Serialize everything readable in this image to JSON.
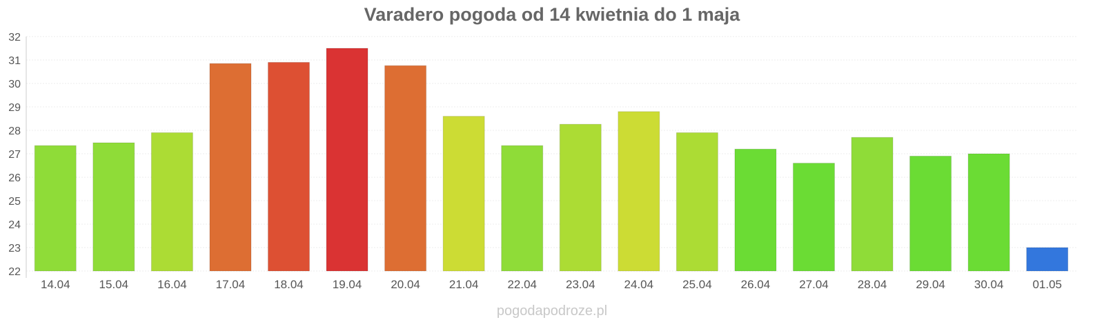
{
  "chart_data": {
    "type": "bar",
    "title": "Varadero pogoda od 14 kwietnia do 1 maja",
    "xlabel": "",
    "ylabel": "",
    "ylim": [
      22,
      32
    ],
    "yticks": [
      "22",
      "23",
      "24",
      "25",
      "26",
      "27",
      "28",
      "29",
      "30",
      "31",
      "32"
    ],
    "grid": true,
    "categories": [
      "14.04",
      "15.04",
      "16.04",
      "17.04",
      "18.04",
      "19.04",
      "20.04",
      "21.04",
      "22.04",
      "23.04",
      "24.04",
      "25.04",
      "26.04",
      "27.04",
      "28.04",
      "29.04",
      "30.04",
      "01.05"
    ],
    "values": [
      27.35,
      27.47,
      27.9,
      30.85,
      30.9,
      31.5,
      30.76,
      28.6,
      27.35,
      28.26,
      28.8,
      27.9,
      27.2,
      26.6,
      27.7,
      26.9,
      27.0,
      23.0
    ],
    "colors": [
      "#8fdc38",
      "#8fdc38",
      "#acdc34",
      "#dd6e33",
      "#dd5033",
      "#da3333",
      "#dd6e33",
      "#ccdc34",
      "#8fdc38",
      "#acdc34",
      "#ccdc34",
      "#acdc34",
      "#6bdc34",
      "#6bdc34",
      "#8fdc38",
      "#6bdc34",
      "#6bdc34",
      "#3377dd"
    ]
  },
  "watermark": "pogodapodroze.pl"
}
